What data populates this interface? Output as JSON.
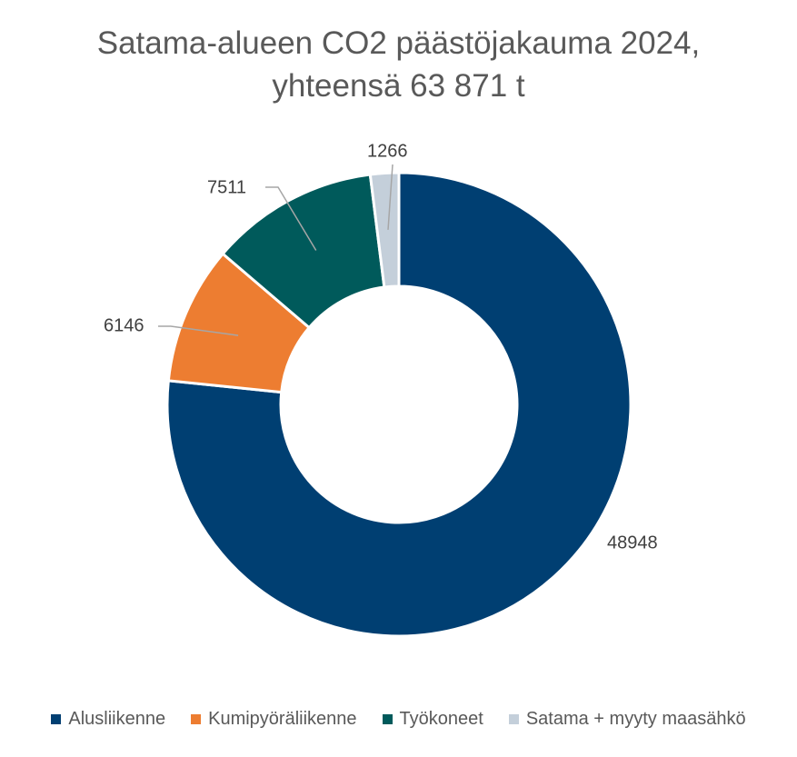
{
  "chart_data": {
    "type": "pie",
    "variant": "doughnut",
    "title_line1": "Satama-alueen CO2 päästöjakauma 2024,",
    "title_line2": "yhteensä 63 871 t",
    "legend_position": "bottom",
    "series": [
      {
        "name": "",
        "categories": [
          "Alusliikenne",
          "Kumipyöräliikenne",
          "Työkoneet",
          "Satama + myyty maasähkö"
        ],
        "values": [
          48948,
          6146,
          7511,
          1266
        ],
        "labels": [
          "48948",
          "6146",
          "7511",
          "1266"
        ],
        "colors": [
          "#003F72",
          "#ED7D31",
          "#005A5B",
          "#C4CFDA"
        ]
      }
    ]
  }
}
